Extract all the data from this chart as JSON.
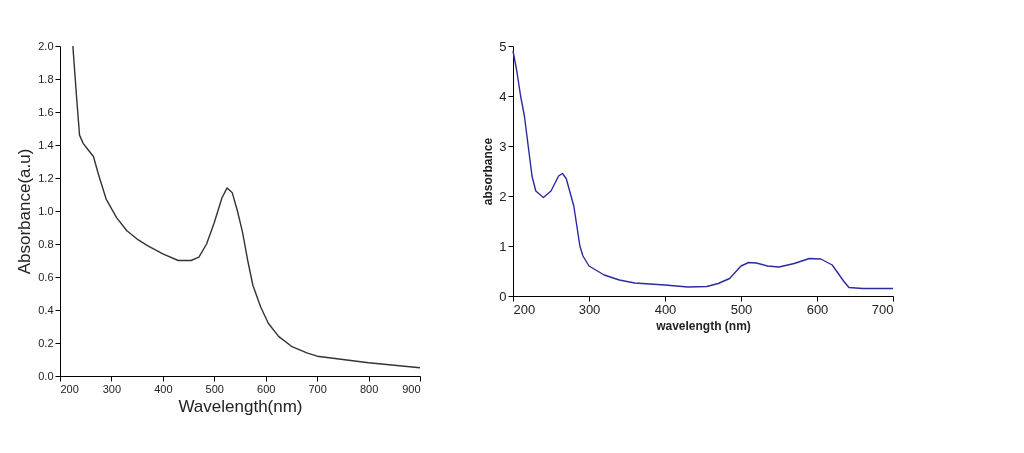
{
  "chart_data": [
    {
      "type": "line",
      "xlabel": "Wavelength(nm)",
      "ylabel": "Absorbance(a.u)",
      "xlim": [
        200,
        900
      ],
      "ylim": [
        0,
        2.0
      ],
      "xticks": [
        200,
        300,
        400,
        500,
        600,
        700,
        800,
        900
      ],
      "yticks": [
        {
          "value": 0,
          "label": "0.0"
        },
        0.2,
        0.4,
        0.6,
        0.8,
        {
          "value": 1,
          "label": "1.0"
        },
        1.2,
        1.4,
        1.6,
        1.8,
        {
          "value": 2,
          "label": "2.0"
        }
      ],
      "grid": false,
      "series": [
        {
          "color": "#333333",
          "x": [
            225,
            232,
            238,
            245,
            255,
            265,
            275,
            290,
            310,
            330,
            350,
            370,
            400,
            430,
            455,
            470,
            485,
            500,
            515,
            525,
            535,
            545,
            555,
            565,
            575,
            590,
            605,
            625,
            650,
            680,
            700,
            750,
            800,
            850,
            900
          ],
          "values": [
            2.0,
            1.7,
            1.46,
            1.41,
            1.37,
            1.33,
            1.22,
            1.07,
            0.96,
            0.88,
            0.83,
            0.79,
            0.74,
            0.7,
            0.7,
            0.72,
            0.8,
            0.93,
            1.08,
            1.14,
            1.11,
            1.0,
            0.87,
            0.7,
            0.55,
            0.42,
            0.32,
            0.24,
            0.18,
            0.14,
            0.12,
            0.1,
            0.08,
            0.065,
            0.05
          ]
        }
      ]
    },
    {
      "type": "line",
      "xlabel": "wavelength (nm)",
      "ylabel": "absorbance",
      "xlim": [
        200,
        700
      ],
      "ylim": [
        0,
        5
      ],
      "xticks": [
        200,
        300,
        400,
        500,
        600,
        700
      ],
      "yticks": [
        0,
        1,
        2,
        3,
        4,
        5
      ],
      "grid": false,
      "series": [
        {
          "color": "#2b2ba0",
          "x": [
            200,
            205,
            210,
            215,
            220,
            225,
            230,
            240,
            250,
            260,
            265,
            270,
            280,
            288,
            292,
            300,
            320,
            340,
            360,
            400,
            430,
            455,
            470,
            485,
            500,
            510,
            520,
            535,
            550,
            570,
            590,
            605,
            620,
            635,
            642,
            660,
            700
          ],
          "values": [
            4.9,
            4.5,
            4.0,
            3.6,
            3.0,
            2.4,
            2.1,
            1.97,
            2.1,
            2.4,
            2.45,
            2.35,
            1.8,
            1.0,
            0.8,
            0.6,
            0.42,
            0.32,
            0.26,
            0.22,
            0.18,
            0.19,
            0.25,
            0.35,
            0.6,
            0.67,
            0.66,
            0.6,
            0.58,
            0.65,
            0.75,
            0.74,
            0.62,
            0.3,
            0.17,
            0.15,
            0.15
          ]
        }
      ]
    }
  ]
}
